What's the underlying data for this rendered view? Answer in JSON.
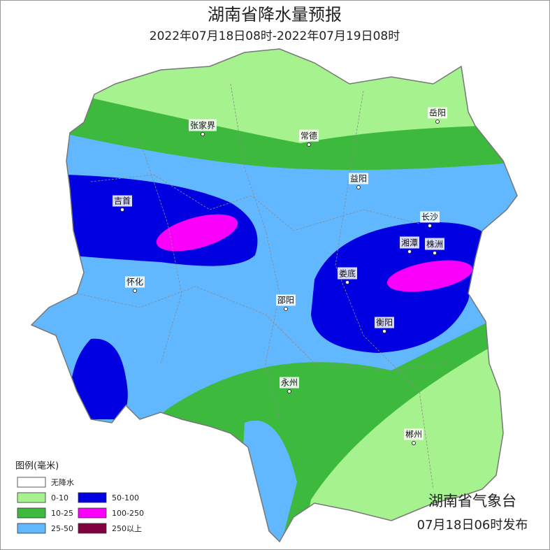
{
  "header": {
    "title": "湖南省降水量预报",
    "subtitle": "2022年07月18日08时-2022年07月19日08时"
  },
  "cities": [
    "张家界",
    "常德",
    "岳阳",
    "益阳",
    "吉首",
    "长沙",
    "湘潭",
    "株洲",
    "娄底",
    "怀化",
    "邵阳",
    "衡阳",
    "永州",
    "郴州"
  ],
  "legend": {
    "title": "图例(毫米)",
    "items": [
      {
        "label": "无降水",
        "color": "#ffffff"
      },
      {
        "label": "0-10",
        "color": "#a6f28f"
      },
      {
        "label": "10-25",
        "color": "#3dba3d"
      },
      {
        "label": "25-50",
        "color": "#61b8ff"
      },
      {
        "label": "50-100",
        "color": "#0000e1"
      },
      {
        "label": "100-250",
        "color": "#fa00fa"
      },
      {
        "label": "250以上",
        "color": "#800040"
      }
    ]
  },
  "footer": {
    "issuer": "湖南省气象台",
    "issued": "07月18日06时发布"
  }
}
